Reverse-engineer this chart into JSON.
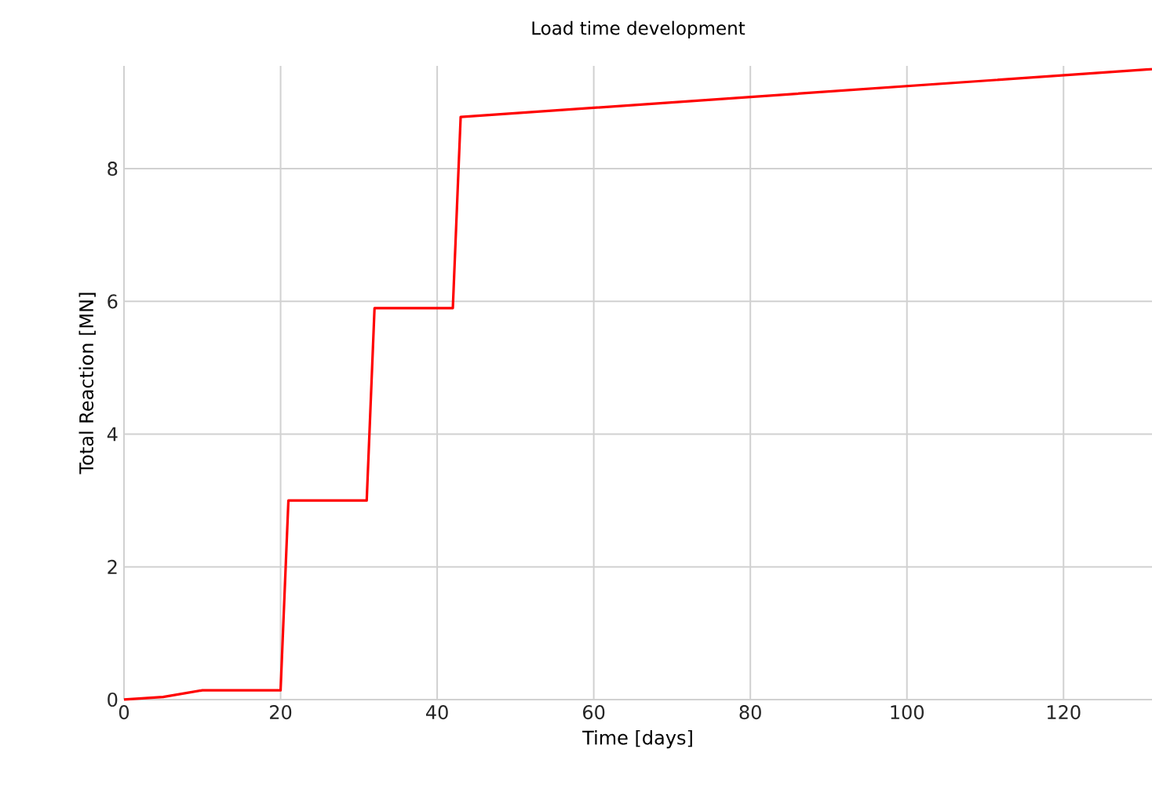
{
  "chart_data": {
    "type": "line",
    "title": "Load time development",
    "xlabel": "Time [days]",
    "ylabel": "Total Reaction [MN]",
    "xlim": [
      0,
      131.3
    ],
    "ylim": [
      0,
      9.55
    ],
    "xticks": [
      0,
      20,
      40,
      60,
      80,
      100,
      120
    ],
    "yticks": [
      0,
      2,
      4,
      6,
      8
    ],
    "grid": true,
    "marker": "none",
    "line_style": "solid",
    "series": [
      {
        "color": "#ff0000",
        "x": [
          0,
          5,
          10,
          20,
          21,
          31,
          32,
          42,
          43,
          131.3
        ],
        "values": [
          0,
          0.04,
          0.14,
          0.14,
          3.0,
          3.0,
          5.9,
          5.9,
          8.78,
          9.5
        ]
      }
    ]
  }
}
